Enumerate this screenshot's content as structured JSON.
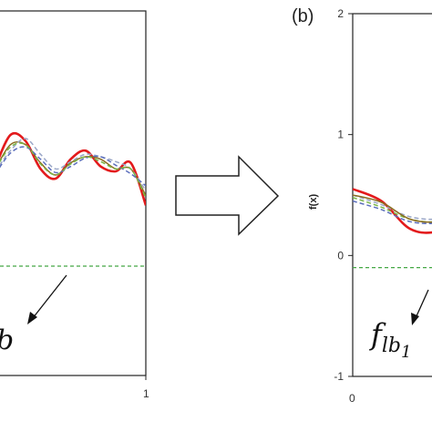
{
  "chart_data": [
    {
      "type": "line",
      "panel_label": "",
      "xlim": [
        0,
        1
      ],
      "ylim": [
        -1,
        2
      ],
      "x_tick_labels": [
        "1"
      ],
      "ylabel": "",
      "lower_bound": {
        "label": "b",
        "y": -0.1
      },
      "x": [
        0.0,
        0.1,
        0.2,
        0.3,
        0.4,
        0.5,
        0.6,
        0.7,
        0.8,
        0.9,
        1.0
      ],
      "series": [
        {
          "color": "#e31a1c",
          "style": "solid",
          "values": [
            0.72,
            0.98,
            0.93,
            0.7,
            0.62,
            0.78,
            0.85,
            0.72,
            0.68,
            0.75,
            0.4
          ]
        },
        {
          "color": "#8c6d1f",
          "style": "solid",
          "values": [
            0.7,
            0.9,
            0.9,
            0.75,
            0.65,
            0.75,
            0.8,
            0.78,
            0.7,
            0.7,
            0.48
          ]
        },
        {
          "color": "#9aa7c7",
          "style": "dashed",
          "values": [
            0.68,
            0.85,
            0.95,
            0.82,
            0.7,
            0.76,
            0.82,
            0.8,
            0.76,
            0.7,
            0.52
          ]
        },
        {
          "color": "#5b6ebd",
          "style": "dashed",
          "values": [
            0.66,
            0.83,
            0.88,
            0.78,
            0.67,
            0.72,
            0.79,
            0.8,
            0.73,
            0.66,
            0.56
          ]
        },
        {
          "color": "#7ab648",
          "style": "dashed",
          "values": [
            0.7,
            0.88,
            0.9,
            0.74,
            0.65,
            0.74,
            0.8,
            0.76,
            0.7,
            0.7,
            0.46
          ]
        }
      ]
    },
    {
      "type": "line",
      "panel_label": "(b)",
      "xlim": [
        0,
        1
      ],
      "ylim": [
        -1,
        2
      ],
      "x_tick_labels": [
        "0"
      ],
      "y_ticks": [
        -1,
        0,
        1,
        2
      ],
      "y_tick_labels": [
        "-1",
        "0",
        "1",
        "2"
      ],
      "ylabel": "f(x)",
      "lower_bound": {
        "label_main": "f",
        "label_sub": "lb",
        "label_subsub": "1",
        "y": -0.1
      },
      "x": [
        0.0,
        0.05,
        0.1,
        0.15,
        0.2,
        0.25
      ],
      "series": [
        {
          "color": "#e31a1c",
          "style": "solid",
          "values": [
            0.55,
            0.45,
            0.22,
            0.2,
            0.32,
            0.38
          ]
        },
        {
          "color": "#9aa7c7",
          "style": "dashed",
          "values": [
            0.5,
            0.42,
            0.32,
            0.3,
            0.34,
            0.38
          ]
        },
        {
          "color": "#5b6ebd",
          "style": "dashed",
          "values": [
            0.45,
            0.38,
            0.28,
            0.27,
            0.33,
            0.37
          ]
        },
        {
          "color": "#7ab648",
          "style": "dashed",
          "values": [
            0.48,
            0.4,
            0.3,
            0.28,
            0.34,
            0.38
          ]
        },
        {
          "color": "#8c6d1f",
          "style": "solid",
          "values": [
            0.5,
            0.44,
            0.3,
            0.28,
            0.35,
            0.39
          ]
        }
      ]
    }
  ],
  "lower_bound_color": "#45a845"
}
